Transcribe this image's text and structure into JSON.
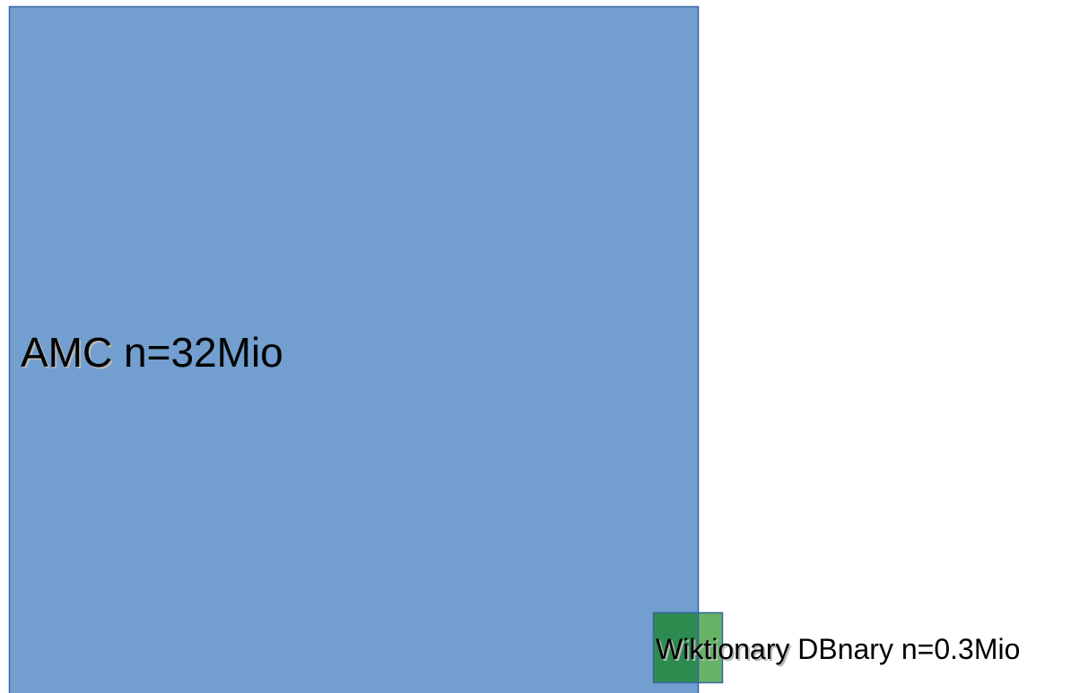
{
  "diagram": {
    "amc": {
      "label_name": "AMC",
      "label_count": " n=32Mio",
      "fill": "#729fcf",
      "stroke": "#3465a4"
    },
    "wiktionary": {
      "label_name": "Wiktionary",
      "label_count": " DBnary n=0.3Mio",
      "fill": "#2e8b57",
      "overlap_fill": "#2e8b4f",
      "outer_fill": "#66b266",
      "stroke": "#3465a4"
    }
  }
}
